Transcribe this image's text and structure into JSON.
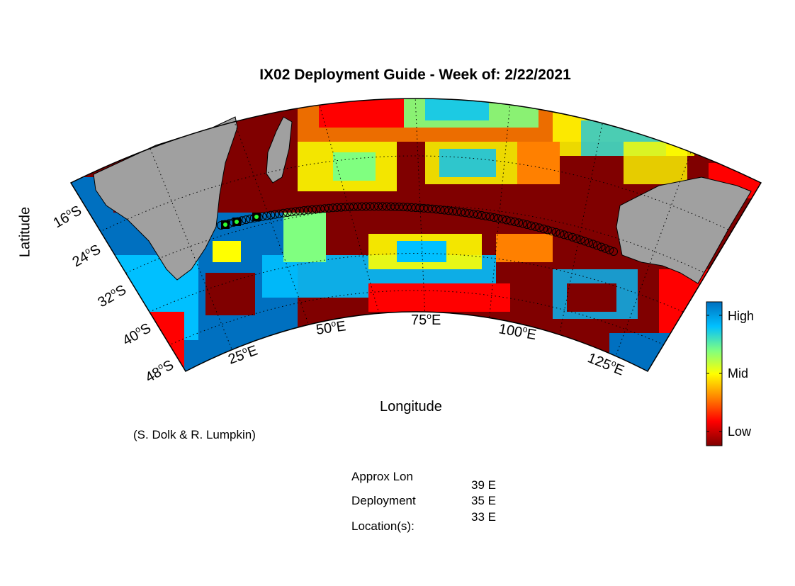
{
  "title": "IX02 Deployment Guide - Week of: 2/22/2021",
  "ylabel": "Latitude",
  "xlabel": "Longitude",
  "credit": "(S. Dolk & R. Lumpkin)",
  "lat_ticks": [
    "16",
    "24",
    "32",
    "40",
    "48"
  ],
  "lat_hemisphere": "S",
  "lon_ticks": [
    "25",
    "50",
    "75",
    "100",
    "125"
  ],
  "lon_hemisphere": "E",
  "degree_symbol": "o",
  "colorbar": {
    "high_label": "High",
    "mid_label": "Mid",
    "low_label": "Low",
    "colors": [
      "#800000",
      "#ff0000",
      "#ff8000",
      "#ffff00",
      "#80ff80",
      "#00c0ff",
      "#0070c0"
    ]
  },
  "colors": {
    "land": "#a0a0a0",
    "ocean_low": "#800000",
    "transect_marker": "#000000",
    "deployment_marker": "#30ff30"
  },
  "info": {
    "label_line1": "Approx Lon",
    "label_line2": "Deployment",
    "label_line3": "Location(s):",
    "locations": [
      "39 E",
      "35 E",
      "33 E"
    ]
  }
}
